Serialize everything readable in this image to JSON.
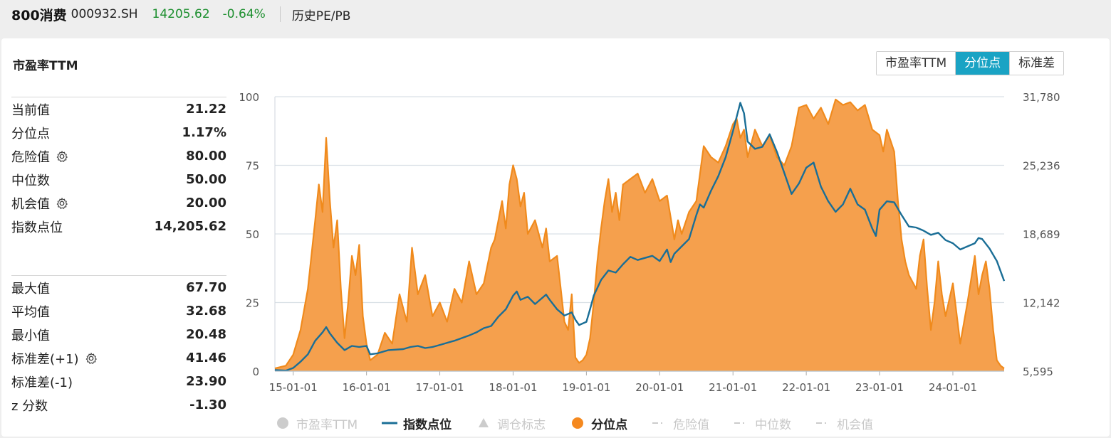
{
  "header": {
    "name": "800消费",
    "code": "000932.SH",
    "price": "14205.62",
    "change": "-0.64%",
    "section_title": "历史PE/PB"
  },
  "card": {
    "title": "市盈率TTM",
    "tabs": [
      {
        "label": "市盈率TTM",
        "active": false
      },
      {
        "label": "分位点",
        "active": true
      },
      {
        "label": "标准差",
        "active": false
      }
    ]
  },
  "stats_top": [
    {
      "label": "当前值",
      "value": "21.22",
      "gear": false
    },
    {
      "label": "分位点",
      "value": "1.17%",
      "gear": false
    },
    {
      "label": "危险值",
      "value": "80.00",
      "gear": true
    },
    {
      "label": "中位数",
      "value": "50.00",
      "gear": false
    },
    {
      "label": "机会值",
      "value": "20.00",
      "gear": true
    },
    {
      "label": "指数点位",
      "value": "14,205.62",
      "gear": false
    }
  ],
  "stats_bottom": [
    {
      "label": "最大值",
      "value": "67.70",
      "gear": false
    },
    {
      "label": "平均值",
      "value": "32.68",
      "gear": false
    },
    {
      "label": "最小值",
      "value": "20.48",
      "gear": false
    },
    {
      "label": "标准差(+1)",
      "value": "41.46",
      "gear": true
    },
    {
      "label": "标准差(-1)",
      "value": "23.90",
      "gear": false
    },
    {
      "label": "z 分数",
      "value": "-1.30",
      "gear": false
    }
  ],
  "legend": [
    {
      "label": "市盈率TTM",
      "marker": "circle",
      "color": "#cccccc",
      "active": false
    },
    {
      "label": "指数点位",
      "marker": "line",
      "color": "#1a6e96",
      "active": true
    },
    {
      "label": "调仓标志",
      "marker": "triangle",
      "color": "#cccccc",
      "active": false
    },
    {
      "label": "分位点",
      "marker": "circle",
      "color": "#f5891f",
      "active": true
    },
    {
      "label": "危险值",
      "marker": "dash",
      "color": "#cccccc",
      "active": false
    },
    {
      "label": "中位数",
      "marker": "dash",
      "color": "#cccccc",
      "active": false
    },
    {
      "label": "机会值",
      "marker": "dash",
      "color": "#cccccc",
      "active": false
    }
  ],
  "colors": {
    "area_fill": "#f5a04d",
    "area_line": "#f08a1c",
    "index_line": "#1a6e96",
    "grid": "#d9e0e6",
    "accent": "#1aa3c4",
    "up_down": "#1d8f2f"
  },
  "chart_data": {
    "type": "area",
    "x_ticks": [
      "15-01-01",
      "16-01-01",
      "17-01-01",
      "18-01-01",
      "19-01-01",
      "20-01-01",
      "21-01-01",
      "22-01-01",
      "23-01-01",
      "24-01-01"
    ],
    "x_range": [
      "2014-10",
      "2024-09"
    ],
    "left_axis": {
      "ticks": [
        "0",
        "25",
        "50",
        "75",
        "100"
      ],
      "range": [
        0,
        100
      ]
    },
    "right_axis": {
      "ticks": [
        "5,595",
        "12,142",
        "18,689",
        "25,236",
        "31,780"
      ],
      "range": [
        5595,
        31780
      ]
    },
    "grid": true,
    "legend_position": "bottom",
    "series": [
      {
        "name": "分位点",
        "axis": "left",
        "style": "area",
        "points": [
          [
            2014.75,
            1
          ],
          [
            2014.9,
            2
          ],
          [
            2015.0,
            6
          ],
          [
            2015.1,
            15
          ],
          [
            2015.2,
            30
          ],
          [
            2015.3,
            55
          ],
          [
            2015.35,
            68
          ],
          [
            2015.4,
            58
          ],
          [
            2015.45,
            85
          ],
          [
            2015.5,
            62
          ],
          [
            2015.55,
            45
          ],
          [
            2015.6,
            55
          ],
          [
            2015.65,
            30
          ],
          [
            2015.7,
            12
          ],
          [
            2015.75,
            25
          ],
          [
            2015.8,
            42
          ],
          [
            2015.85,
            35
          ],
          [
            2015.9,
            46
          ],
          [
            2015.95,
            20
          ],
          [
            2016.0,
            10
          ],
          [
            2016.05,
            4
          ],
          [
            2016.15,
            6
          ],
          [
            2016.25,
            14
          ],
          [
            2016.35,
            10
          ],
          [
            2016.45,
            28
          ],
          [
            2016.55,
            18
          ],
          [
            2016.62,
            45
          ],
          [
            2016.7,
            28
          ],
          [
            2016.8,
            35
          ],
          [
            2016.9,
            20
          ],
          [
            2017.0,
            25
          ],
          [
            2017.1,
            18
          ],
          [
            2017.2,
            30
          ],
          [
            2017.3,
            25
          ],
          [
            2017.4,
            40
          ],
          [
            2017.5,
            28
          ],
          [
            2017.6,
            32
          ],
          [
            2017.7,
            45
          ],
          [
            2017.75,
            48
          ],
          [
            2017.8,
            55
          ],
          [
            2017.85,
            62
          ],
          [
            2017.9,
            52
          ],
          [
            2017.95,
            68
          ],
          [
            2018.0,
            75
          ],
          [
            2018.05,
            70
          ],
          [
            2018.1,
            60
          ],
          [
            2018.15,
            65
          ],
          [
            2018.2,
            50
          ],
          [
            2018.3,
            55
          ],
          [
            2018.4,
            45
          ],
          [
            2018.45,
            52
          ],
          [
            2018.5,
            40
          ],
          [
            2018.6,
            42
          ],
          [
            2018.65,
            30
          ],
          [
            2018.7,
            18
          ],
          [
            2018.75,
            15
          ],
          [
            2018.8,
            28
          ],
          [
            2018.85,
            5
          ],
          [
            2018.9,
            3
          ],
          [
            2018.95,
            4
          ],
          [
            2019.0,
            6
          ],
          [
            2019.05,
            12
          ],
          [
            2019.1,
            25
          ],
          [
            2019.15,
            40
          ],
          [
            2019.2,
            52
          ],
          [
            2019.25,
            62
          ],
          [
            2019.3,
            70
          ],
          [
            2019.35,
            58
          ],
          [
            2019.4,
            65
          ],
          [
            2019.45,
            55
          ],
          [
            2019.5,
            68
          ],
          [
            2019.6,
            70
          ],
          [
            2019.7,
            72
          ],
          [
            2019.8,
            65
          ],
          [
            2019.9,
            70
          ],
          [
            2020.0,
            62
          ],
          [
            2020.1,
            64
          ],
          [
            2020.2,
            48
          ],
          [
            2020.25,
            55
          ],
          [
            2020.3,
            50
          ],
          [
            2020.4,
            58
          ],
          [
            2020.5,
            62
          ],
          [
            2020.6,
            82
          ],
          [
            2020.7,
            78
          ],
          [
            2020.8,
            76
          ],
          [
            2020.9,
            82
          ],
          [
            2021.0,
            90
          ],
          [
            2021.05,
            92
          ],
          [
            2021.1,
            85
          ],
          [
            2021.15,
            88
          ],
          [
            2021.2,
            78
          ],
          [
            2021.3,
            88
          ],
          [
            2021.4,
            82
          ],
          [
            2021.5,
            86
          ],
          [
            2021.6,
            78
          ],
          [
            2021.7,
            75
          ],
          [
            2021.8,
            82
          ],
          [
            2021.9,
            96
          ],
          [
            2022.0,
            97
          ],
          [
            2022.1,
            92
          ],
          [
            2022.2,
            96
          ],
          [
            2022.3,
            90
          ],
          [
            2022.4,
            99
          ],
          [
            2022.5,
            97
          ],
          [
            2022.6,
            98
          ],
          [
            2022.7,
            95
          ],
          [
            2022.8,
            97
          ],
          [
            2022.9,
            88
          ],
          [
            2023.0,
            86
          ],
          [
            2023.05,
            80
          ],
          [
            2023.1,
            88
          ],
          [
            2023.2,
            80
          ],
          [
            2023.25,
            62
          ],
          [
            2023.3,
            48
          ],
          [
            2023.35,
            40
          ],
          [
            2023.4,
            35
          ],
          [
            2023.5,
            30
          ],
          [
            2023.55,
            42
          ],
          [
            2023.6,
            48
          ],
          [
            2023.65,
            30
          ],
          [
            2023.7,
            15
          ],
          [
            2023.75,
            25
          ],
          [
            2023.8,
            40
          ],
          [
            2023.85,
            28
          ],
          [
            2023.9,
            20
          ],
          [
            2024.0,
            32
          ],
          [
            2024.1,
            10
          ],
          [
            2024.2,
            25
          ],
          [
            2024.3,
            42
          ],
          [
            2024.35,
            28
          ],
          [
            2024.4,
            35
          ],
          [
            2024.45,
            40
          ],
          [
            2024.5,
            30
          ],
          [
            2024.55,
            15
          ],
          [
            2024.6,
            4
          ],
          [
            2024.65,
            2
          ],
          [
            2024.7,
            1
          ]
        ]
      },
      {
        "name": "指数点位",
        "axis": "right",
        "style": "line",
        "points": [
          [
            2014.75,
            5700
          ],
          [
            2014.9,
            5650
          ],
          [
            2015.0,
            5900
          ],
          [
            2015.1,
            6500
          ],
          [
            2015.2,
            7200
          ],
          [
            2015.3,
            8500
          ],
          [
            2015.4,
            9300
          ],
          [
            2015.45,
            9800
          ],
          [
            2015.5,
            9200
          ],
          [
            2015.6,
            8300
          ],
          [
            2015.7,
            7600
          ],
          [
            2015.8,
            8000
          ],
          [
            2015.9,
            7900
          ],
          [
            2016.0,
            8000
          ],
          [
            2016.05,
            7200
          ],
          [
            2016.15,
            7300
          ],
          [
            2016.3,
            7600
          ],
          [
            2016.5,
            7700
          ],
          [
            2016.6,
            7900
          ],
          [
            2016.7,
            8000
          ],
          [
            2016.8,
            7800
          ],
          [
            2016.9,
            7900
          ],
          [
            2017.0,
            8100
          ],
          [
            2017.2,
            8500
          ],
          [
            2017.4,
            9000
          ],
          [
            2017.5,
            9300
          ],
          [
            2017.6,
            9700
          ],
          [
            2017.7,
            9900
          ],
          [
            2017.8,
            10800
          ],
          [
            2017.9,
            11500
          ],
          [
            2018.0,
            12800
          ],
          [
            2018.05,
            13200
          ],
          [
            2018.1,
            12400
          ],
          [
            2018.2,
            12700
          ],
          [
            2018.3,
            12000
          ],
          [
            2018.45,
            12900
          ],
          [
            2018.5,
            12400
          ],
          [
            2018.6,
            11500
          ],
          [
            2018.7,
            10900
          ],
          [
            2018.8,
            11200
          ],
          [
            2018.85,
            10500
          ],
          [
            2018.9,
            10000
          ],
          [
            2019.0,
            10300
          ],
          [
            2019.05,
            11500
          ],
          [
            2019.1,
            12800
          ],
          [
            2019.2,
            14300
          ],
          [
            2019.3,
            15200
          ],
          [
            2019.4,
            15000
          ],
          [
            2019.5,
            15800
          ],
          [
            2019.6,
            16500
          ],
          [
            2019.7,
            16200
          ],
          [
            2019.8,
            16400
          ],
          [
            2019.9,
            16600
          ],
          [
            2020.0,
            16100
          ],
          [
            2020.1,
            17200
          ],
          [
            2020.15,
            16000
          ],
          [
            2020.2,
            16800
          ],
          [
            2020.3,
            17500
          ],
          [
            2020.4,
            18200
          ],
          [
            2020.5,
            20500
          ],
          [
            2020.55,
            21500
          ],
          [
            2020.6,
            21200
          ],
          [
            2020.7,
            22800
          ],
          [
            2020.8,
            24200
          ],
          [
            2020.9,
            26000
          ],
          [
            2021.0,
            28500
          ],
          [
            2021.1,
            31200
          ],
          [
            2021.15,
            30200
          ],
          [
            2021.2,
            27500
          ],
          [
            2021.3,
            26800
          ],
          [
            2021.4,
            27000
          ],
          [
            2021.5,
            28200
          ],
          [
            2021.6,
            26500
          ],
          [
            2021.7,
            24500
          ],
          [
            2021.8,
            22500
          ],
          [
            2021.9,
            23500
          ],
          [
            2022.0,
            25000
          ],
          [
            2022.1,
            25500
          ],
          [
            2022.2,
            23200
          ],
          [
            2022.3,
            21800
          ],
          [
            2022.4,
            20800
          ],
          [
            2022.5,
            21500
          ],
          [
            2022.6,
            23000
          ],
          [
            2022.7,
            21500
          ],
          [
            2022.8,
            21000
          ],
          [
            2022.9,
            19200
          ],
          [
            2022.95,
            18500
          ],
          [
            2023.0,
            21000
          ],
          [
            2023.1,
            21800
          ],
          [
            2023.2,
            21700
          ],
          [
            2023.3,
            20500
          ],
          [
            2023.4,
            19400
          ],
          [
            2023.5,
            19300
          ],
          [
            2023.6,
            19000
          ],
          [
            2023.7,
            18600
          ],
          [
            2023.8,
            18800
          ],
          [
            2023.9,
            18100
          ],
          [
            2024.0,
            17800
          ],
          [
            2024.1,
            17200
          ],
          [
            2024.2,
            17500
          ],
          [
            2024.3,
            17800
          ],
          [
            2024.35,
            18300
          ],
          [
            2024.4,
            18200
          ],
          [
            2024.5,
            17300
          ],
          [
            2024.6,
            16100
          ],
          [
            2024.7,
            14200
          ]
        ]
      }
    ]
  }
}
